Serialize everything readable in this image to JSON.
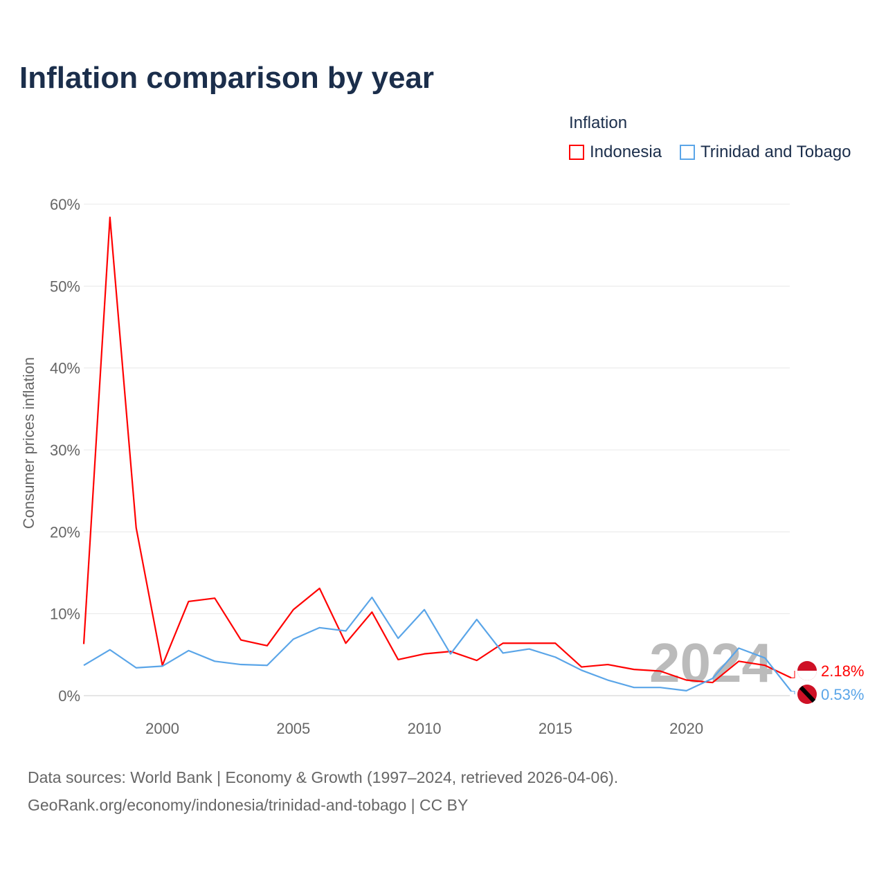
{
  "chart_data": {
    "type": "line",
    "title": "Inflation comparison by year",
    "legend_title": "Inflation",
    "ylabel": "Consumer prices inflation",
    "xlabel": "",
    "ylim": [
      0,
      60
    ],
    "xlim": [
      1997,
      2024
    ],
    "yticks": [
      "0%",
      "10%",
      "20%",
      "30%",
      "40%",
      "50%",
      "60%"
    ],
    "xticks": [
      "2000",
      "2005",
      "2010",
      "2015",
      "2020"
    ],
    "watermark_year": "2024",
    "x": [
      1997,
      1998,
      1999,
      2000,
      2001,
      2002,
      2003,
      2004,
      2005,
      2006,
      2007,
      2008,
      2009,
      2010,
      2011,
      2012,
      2013,
      2014,
      2015,
      2016,
      2017,
      2018,
      2019,
      2020,
      2021,
      2022,
      2023,
      2024
    ],
    "series": [
      {
        "name": "Indonesia",
        "color": "#ff0000",
        "end_label": "2.18%",
        "values": [
          6.3,
          58.4,
          20.5,
          3.7,
          11.5,
          11.9,
          6.8,
          6.1,
          10.5,
          13.1,
          6.4,
          10.2,
          4.4,
          5.1,
          5.4,
          4.3,
          6.4,
          6.4,
          6.4,
          3.5,
          3.8,
          3.2,
          3.0,
          1.9,
          1.6,
          4.2,
          3.7,
          2.18
        ]
      },
      {
        "name": "Trinidad and Tobago",
        "color": "#5aa5e8",
        "end_label": "0.53%",
        "values": [
          3.7,
          5.6,
          3.4,
          3.6,
          5.5,
          4.2,
          3.8,
          3.7,
          6.9,
          8.3,
          7.9,
          12.0,
          7.0,
          10.5,
          5.1,
          9.3,
          5.2,
          5.7,
          4.7,
          3.1,
          1.9,
          1.0,
          1.0,
          0.6,
          2.1,
          5.8,
          4.6,
          0.53
        ]
      }
    ]
  },
  "footer": {
    "source": "Data sources: World Bank | Economy & Growth (1997–2024, retrieved 2026-04-06).",
    "credit": "GeoRank.org/economy/indonesia/trinidad-and-tobago | CC BY"
  }
}
